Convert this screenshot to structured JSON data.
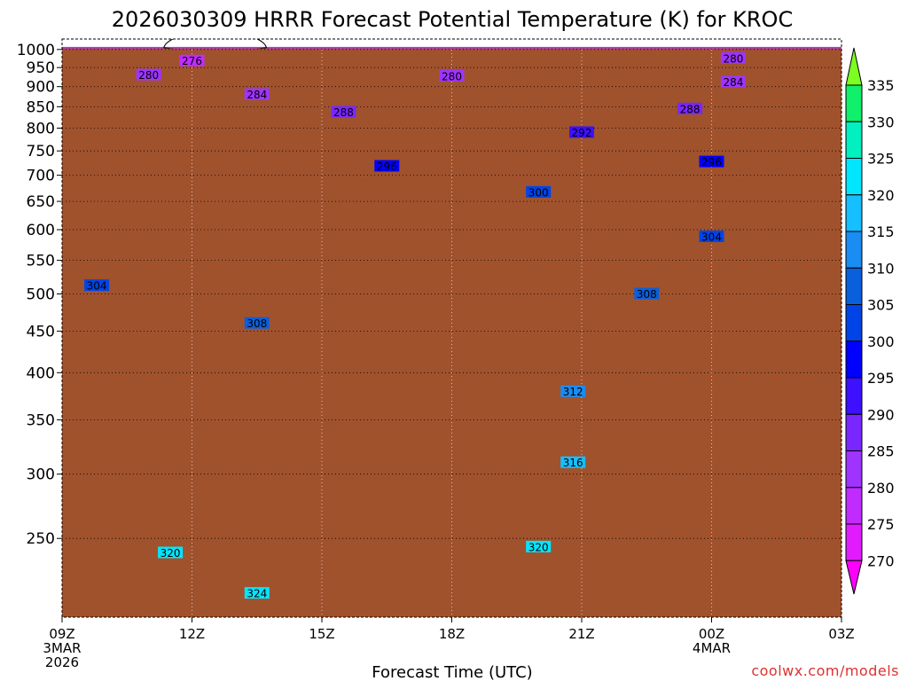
{
  "chart_data": {
    "type": "heatmap",
    "title": "2026030309 HRRR Forecast Potential Temperature (K) for KROC",
    "xlabel": "Forecast Time (UTC)",
    "ylabel": "",
    "x_ticks": [
      {
        "label": "09Z",
        "sub": [
          "3MAR",
          "2026"
        ]
      },
      {
        "label": "12Z",
        "sub": []
      },
      {
        "label": "15Z",
        "sub": []
      },
      {
        "label": "18Z",
        "sub": []
      },
      {
        "label": "21Z",
        "sub": []
      },
      {
        "label": "00Z",
        "sub": [
          "4MAR"
        ]
      },
      {
        "label": "03Z",
        "sub": []
      }
    ],
    "x_hours": [
      0,
      3,
      6,
      9,
      12,
      15,
      18
    ],
    "y_ticks": [
      250,
      300,
      350,
      400,
      450,
      500,
      550,
      600,
      650,
      700,
      750,
      800,
      850,
      900,
      950,
      1000
    ],
    "y_range_hpa": [
      1030,
      200
    ],
    "y_scale": "log-pressure",
    "grid": true,
    "colorbar": {
      "levels": [
        270,
        275,
        280,
        285,
        290,
        295,
        300,
        305,
        310,
        315,
        320,
        325,
        330,
        335
      ],
      "colors": [
        "#ff00ff",
        "#e21bff",
        "#c02bff",
        "#9f34ff",
        "#7a27ff",
        "#3d10ff",
        "#0000ff",
        "#0044e8",
        "#0a5fdd",
        "#1a8cf2",
        "#16bfff",
        "#00e6ff",
        "#00f0c0",
        "#10f06a",
        "#7cff20"
      ]
    },
    "contour_labels": [
      {
        "value": "324",
        "hour": 4.5,
        "p": 214
      },
      {
        "value": "320",
        "hour": 2.5,
        "p": 240
      },
      {
        "value": "320",
        "hour": 11.0,
        "p": 244
      },
      {
        "value": "316",
        "hour": 11.8,
        "p": 310
      },
      {
        "value": "312",
        "hour": 11.8,
        "p": 379
      },
      {
        "value": "308",
        "hour": 4.5,
        "p": 460
      },
      {
        "value": "308",
        "hour": 13.5,
        "p": 500
      },
      {
        "value": "304",
        "hour": 0.8,
        "p": 512
      },
      {
        "value": "304",
        "hour": 15.0,
        "p": 588
      },
      {
        "value": "300",
        "hour": 11.0,
        "p": 667
      },
      {
        "value": "296",
        "hour": 7.5,
        "p": 718
      },
      {
        "value": "296",
        "hour": 15.0,
        "p": 727
      },
      {
        "value": "292",
        "hour": 12.0,
        "p": 790
      },
      {
        "value": "288",
        "hour": 6.5,
        "p": 837
      },
      {
        "value": "288",
        "hour": 14.5,
        "p": 845
      },
      {
        "value": "284",
        "hour": 4.5,
        "p": 880
      },
      {
        "value": "284",
        "hour": 15.5,
        "p": 912
      },
      {
        "value": "280",
        "hour": 2.0,
        "p": 930
      },
      {
        "value": "280",
        "hour": 9.0,
        "p": 927
      },
      {
        "value": "280",
        "hour": 15.5,
        "p": 975
      },
      {
        "value": "276",
        "hour": 3.0,
        "p": 968
      }
    ],
    "ground_color": "#a0522d"
  },
  "credit": "coolwx.com/models"
}
